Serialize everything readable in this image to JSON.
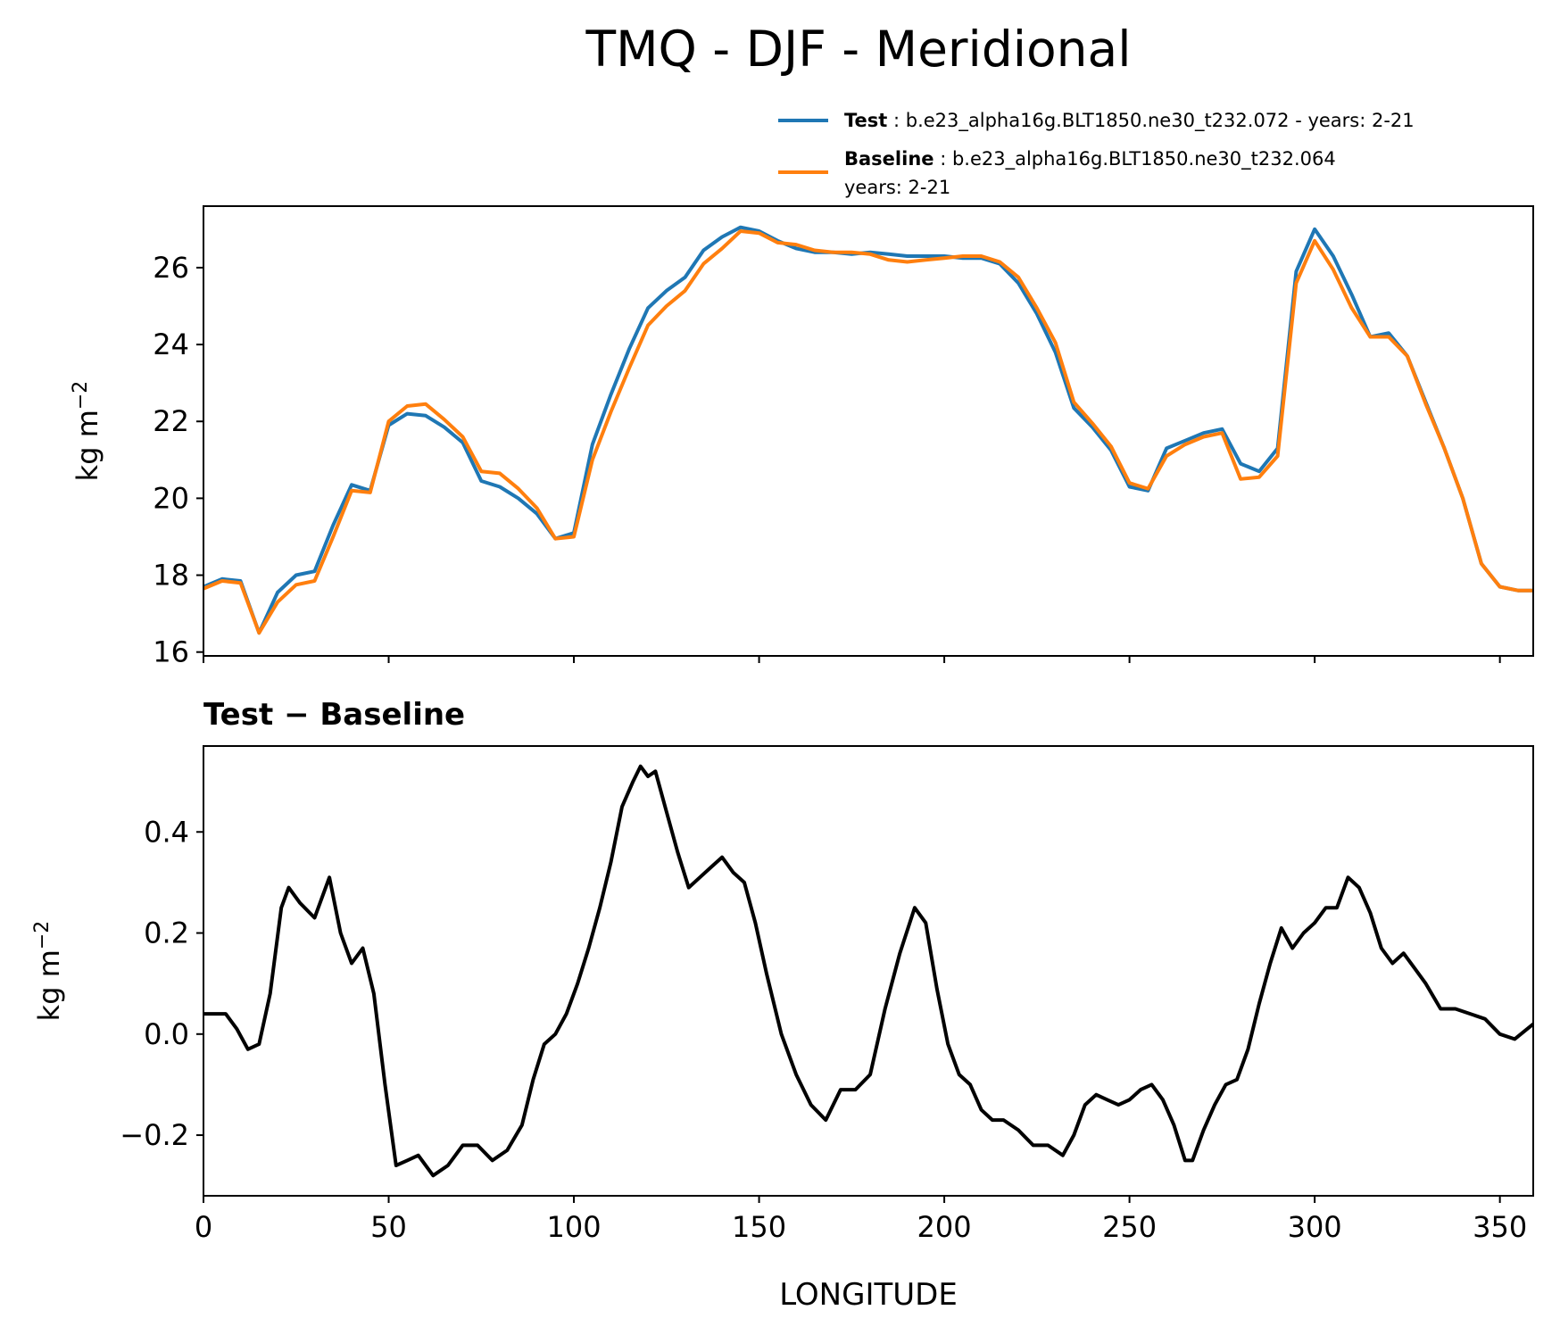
{
  "figure": {
    "title": "TMQ - DJF - Meridional"
  },
  "legend": {
    "entries": [
      {
        "label": "Test",
        "text": " : b.e23_alpha16g.BLT1850.ne30_t232.072 - years: 2-21",
        "text2": "",
        "color": "#1f77b4"
      },
      {
        "label": "Baseline",
        "text": " : b.e23_alpha16g.BLT1850.ne30_t232.064",
        "text2": "years: 2-21",
        "color": "#ff7f0e"
      }
    ]
  },
  "chart_data": [
    {
      "type": "line",
      "title": "",
      "xlabel": "",
      "ylabel": "kg m",
      "ylabel_exp": "−2",
      "xlim": [
        0,
        359
      ],
      "ylim": [
        15.9,
        27.6
      ],
      "yticks": [
        16,
        18,
        20,
        22,
        24,
        26
      ],
      "ytick_labels": [
        "16",
        "18",
        "20",
        "22",
        "24",
        "26"
      ],
      "xticks": [
        0,
        50,
        100,
        150,
        200,
        250,
        300,
        350
      ],
      "grid": false,
      "legend": "top-right, above plot",
      "x": [
        0,
        5,
        10,
        15,
        20,
        25,
        30,
        35,
        40,
        45,
        50,
        55,
        60,
        65,
        70,
        75,
        80,
        85,
        90,
        95,
        100,
        105,
        110,
        115,
        120,
        125,
        130,
        135,
        140,
        145,
        150,
        155,
        160,
        165,
        170,
        175,
        180,
        185,
        190,
        195,
        200,
        205,
        210,
        215,
        220,
        225,
        230,
        235,
        240,
        245,
        250,
        255,
        260,
        265,
        270,
        275,
        280,
        285,
        290,
        295,
        300,
        305,
        310,
        315,
        320,
        325,
        330,
        335,
        340,
        345,
        350,
        355,
        359
      ],
      "series": [
        {
          "name": "Test",
          "color": "#1f77b4",
          "values": [
            17.7,
            17.9,
            17.85,
            16.5,
            17.55,
            18.0,
            18.1,
            19.3,
            20.35,
            20.2,
            21.9,
            22.2,
            22.15,
            21.85,
            21.45,
            20.45,
            20.3,
            20.0,
            19.6,
            18.95,
            19.1,
            21.4,
            22.7,
            23.9,
            24.95,
            25.4,
            25.75,
            26.45,
            26.8,
            27.05,
            26.95,
            26.7,
            26.5,
            26.4,
            26.4,
            26.35,
            26.4,
            26.35,
            26.3,
            26.3,
            26.3,
            26.25,
            26.25,
            26.1,
            25.6,
            24.8,
            23.8,
            22.35,
            21.85,
            21.25,
            20.3,
            20.2,
            21.3,
            21.5,
            21.7,
            21.8,
            20.9,
            20.7,
            21.3,
            25.9,
            27.0,
            26.3,
            25.3,
            24.2,
            24.3,
            23.7,
            22.5,
            21.3,
            20.0,
            18.3,
            17.7,
            17.6,
            17.6
          ]
        },
        {
          "name": "Baseline",
          "color": "#ff7f0e",
          "values": [
            17.65,
            17.85,
            17.8,
            16.5,
            17.3,
            17.75,
            17.85,
            19.0,
            20.2,
            20.15,
            22.0,
            22.4,
            22.45,
            22.05,
            21.6,
            20.7,
            20.65,
            20.25,
            19.75,
            18.95,
            19.0,
            21.0,
            22.25,
            23.4,
            24.5,
            25.0,
            25.4,
            26.1,
            26.5,
            26.95,
            26.9,
            26.65,
            26.6,
            26.45,
            26.4,
            26.4,
            26.35,
            26.2,
            26.15,
            26.2,
            26.25,
            26.3,
            26.3,
            26.15,
            25.75,
            24.95,
            24.05,
            22.5,
            21.95,
            21.35,
            20.4,
            20.25,
            21.1,
            21.4,
            21.6,
            21.7,
            20.5,
            20.55,
            21.1,
            25.6,
            26.7,
            25.95,
            24.95,
            24.2,
            24.2,
            23.7,
            22.45,
            21.3,
            20.0,
            18.3,
            17.7,
            17.6,
            17.6
          ]
        }
      ]
    },
    {
      "type": "line",
      "title": "Test − Baseline",
      "xlabel": "LONGITUDE",
      "ylabel": "kg m",
      "ylabel_exp": "−2",
      "xlim": [
        0,
        359
      ],
      "ylim": [
        -0.32,
        0.57
      ],
      "yticks": [
        -0.2,
        0.0,
        0.2,
        0.4
      ],
      "ytick_labels": [
        "−0.2",
        "0.0",
        "0.2",
        "0.4"
      ],
      "xticks": [
        0,
        50,
        100,
        150,
        200,
        250,
        300,
        350
      ],
      "xtick_labels": [
        "0",
        "50",
        "100",
        "150",
        "200",
        "250",
        "300",
        "350"
      ],
      "grid": false,
      "x": [
        0,
        3,
        6,
        9,
        12,
        15,
        18,
        21,
        23,
        26,
        30,
        34,
        37,
        40,
        43,
        46,
        49,
        52,
        55,
        58,
        62,
        66,
        70,
        74,
        78,
        82,
        86,
        89,
        92,
        95,
        98,
        101,
        104,
        107,
        110,
        113,
        116,
        118,
        120,
        122,
        125,
        128,
        131,
        134,
        137,
        140,
        143,
        146,
        149,
        152,
        156,
        160,
        164,
        168,
        172,
        176,
        180,
        184,
        188,
        192,
        195,
        198,
        201,
        204,
        207,
        210,
        213,
        216,
        220,
        224,
        228,
        232,
        235,
        238,
        241,
        244,
        247,
        250,
        253,
        256,
        259,
        262,
        265,
        267,
        270,
        273,
        276,
        279,
        282,
        285,
        288,
        291,
        294,
        297,
        300,
        303,
        306,
        309,
        312,
        315,
        318,
        321,
        324,
        327,
        330,
        334,
        338,
        342,
        346,
        350,
        354,
        359
      ],
      "series": [
        {
          "name": "Test − Baseline",
          "color": "#000000",
          "values": [
            0.04,
            0.04,
            0.04,
            0.01,
            -0.03,
            -0.02,
            0.08,
            0.25,
            0.29,
            0.26,
            0.23,
            0.31,
            0.2,
            0.14,
            0.17,
            0.08,
            -0.1,
            -0.26,
            -0.25,
            -0.24,
            -0.28,
            -0.26,
            -0.22,
            -0.22,
            -0.25,
            -0.23,
            -0.18,
            -0.09,
            -0.02,
            0.0,
            0.04,
            0.1,
            0.17,
            0.25,
            0.34,
            0.45,
            0.5,
            0.53,
            0.51,
            0.52,
            0.44,
            0.36,
            0.29,
            0.31,
            0.33,
            0.35,
            0.32,
            0.3,
            0.22,
            0.12,
            0.0,
            -0.08,
            -0.14,
            -0.17,
            -0.11,
            -0.11,
            -0.08,
            0.05,
            0.16,
            0.25,
            0.22,
            0.09,
            -0.02,
            -0.08,
            -0.1,
            -0.15,
            -0.17,
            -0.17,
            -0.19,
            -0.22,
            -0.22,
            -0.24,
            -0.2,
            -0.14,
            -0.12,
            -0.13,
            -0.14,
            -0.13,
            -0.11,
            -0.1,
            -0.13,
            -0.18,
            -0.25,
            -0.25,
            -0.19,
            -0.14,
            -0.1,
            -0.09,
            -0.03,
            0.06,
            0.14,
            0.21,
            0.17,
            0.2,
            0.22,
            0.25,
            0.25,
            0.31,
            0.29,
            0.24,
            0.17,
            0.14,
            0.16,
            0.13,
            0.1,
            0.05,
            0.05,
            0.04,
            0.03,
            0.0,
            -0.01,
            0.02
          ]
        }
      ]
    }
  ]
}
